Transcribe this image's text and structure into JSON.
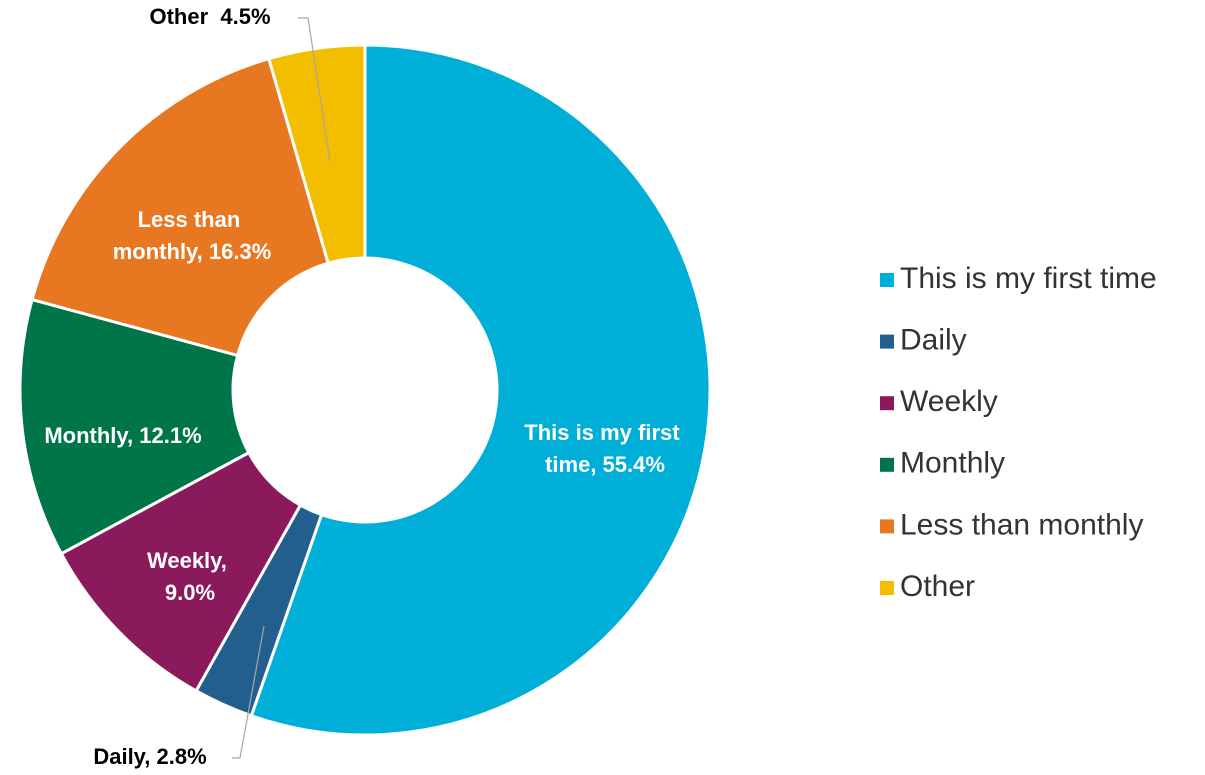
{
  "chart_data": {
    "type": "donut",
    "categories": [
      "This is my first time",
      "Daily",
      "Weekly",
      "Monthly",
      "Less than monthly",
      "Other"
    ],
    "values": [
      55.4,
      2.8,
      9.0,
      12.1,
      16.3,
      4.5
    ],
    "value_labels": [
      "This is my first time, 55.4%",
      "Daily, 2.8%",
      "Weekly, 9.0%",
      "Monthly, 12.1%",
      "Less than monthly, 16.3%",
      "Other  4.5%"
    ],
    "colors": [
      "#00afd8",
      "#235f8e",
      "#8b1a5c",
      "#00754a",
      "#e87722",
      "#f4be00"
    ],
    "legend": "right"
  }
}
